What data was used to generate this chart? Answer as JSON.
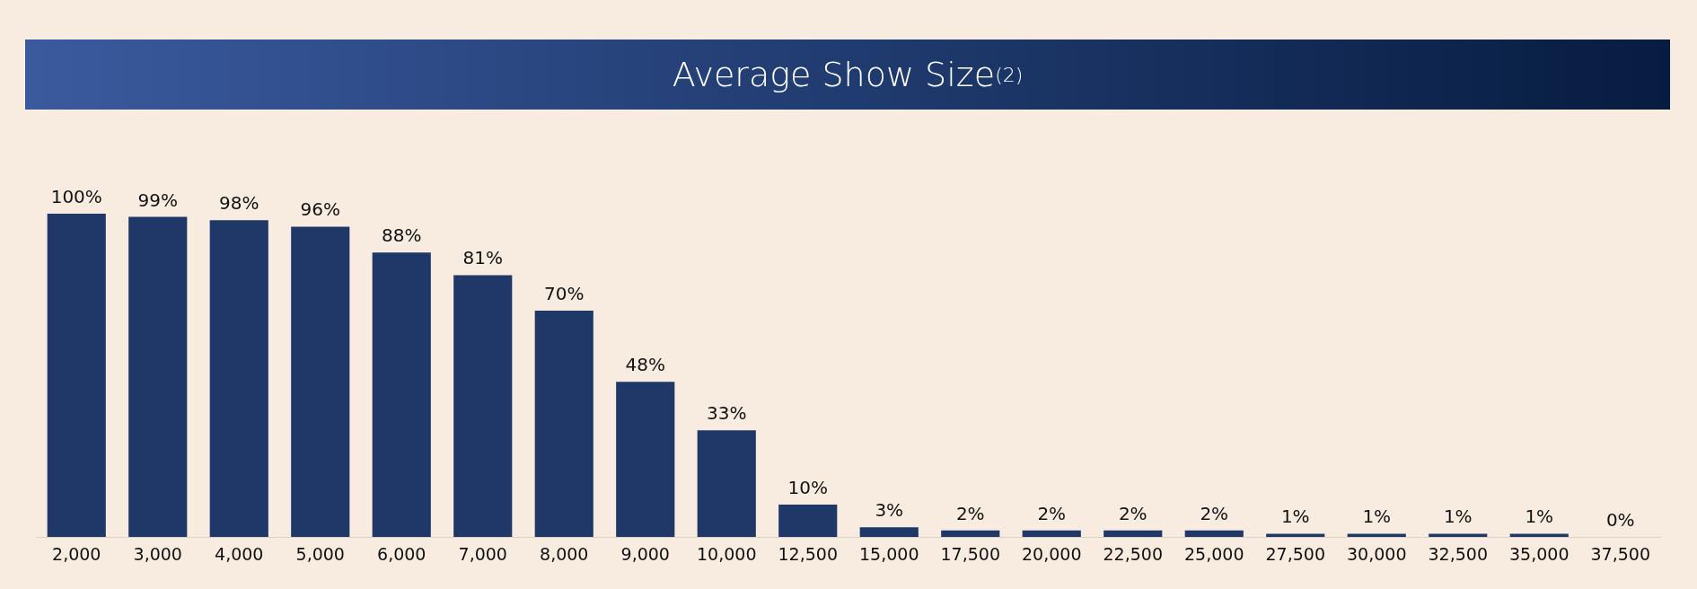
{
  "chart_data": {
    "type": "bar",
    "title": "Average Show Size$^{(2)}$",
    "categories": [
      "2,000",
      "3,000",
      "4,000",
      "5,000",
      "6,000",
      "7,000",
      "8,000",
      "9,000",
      "10,000",
      "12,500",
      "15,000",
      "17,500",
      "20,000",
      "22,500",
      "25,000",
      "27,500",
      "30,000",
      "32,500",
      "35,000",
      "37,500"
    ],
    "values": [
      100,
      99,
      98,
      96,
      88,
      81,
      70,
      48,
      33,
      10,
      3,
      2,
      2,
      2,
      2,
      1,
      1,
      1,
      1,
      0
    ],
    "value_labels": [
      "100%",
      "99%",
      "98%",
      "96%",
      "88%",
      "81%",
      "70%",
      "48%",
      "33%",
      "10%",
      "3%",
      "2%",
      "2%",
      "2%",
      "2%",
      "1%",
      "1%",
      "1%",
      "1%",
      "0%"
    ],
    "color": "#1f3868"
  }
}
